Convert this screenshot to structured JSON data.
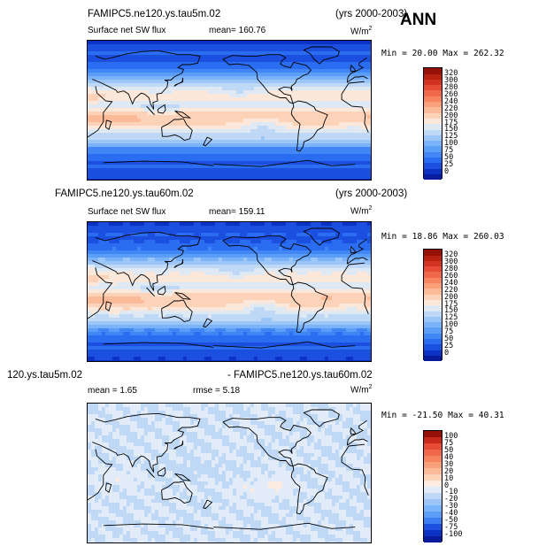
{
  "season": "ANN",
  "units": "W/m",
  "units_superscript": "2",
  "colors": {
    "abs_scale": [
      "#081b9c",
      "#0c32c4",
      "#1a4fe0",
      "#2a6df0",
      "#4286f5",
      "#5b9ef7",
      "#7ab3f9",
      "#9dc6f8",
      "#bfd8f5",
      "#dfe9f4",
      "#fbe8da",
      "#fcd3b9",
      "#fbbb98",
      "#f9a07a",
      "#f6845f",
      "#f0674a",
      "#e54b35",
      "#d23221",
      "#b8200f",
      "#951006"
    ],
    "diff_scale": [
      "#081b9c",
      "#0c32c4",
      "#1a4fe0",
      "#3d7ef2",
      "#5b9ef7",
      "#7ab3f9",
      "#9dc6f8",
      "#bfd8f5",
      "#e2ecf8",
      "#fcebe0",
      "#fcd3b9",
      "#fbbb98",
      "#f9a07a",
      "#f6845f",
      "#f0674a",
      "#e54b35",
      "#c8281a",
      "#951006"
    ]
  },
  "panels": [
    {
      "case": "FAMIPC5.ne120.ys.tau5m.02",
      "years": "(yrs 2000-2003)",
      "field": "Surface net SW flux",
      "stat_text": "mean=  160.76",
      "minmax": "Min =  20.00 Max = 262.32"
    },
    {
      "case": "FAMIPC5.ne120.ys.tau60m.02",
      "years": "(yrs 2000-2003)",
      "field": "Surface net SW flux",
      "stat_text": "mean=  159.11",
      "minmax": "Min =  18.86 Max = 260.03"
    },
    {
      "case_left": "120.ys.tau5m.02",
      "case_right": "- FAMIPC5.ne120.ys.tau60m.02",
      "stat_mean": "mean =   1.65",
      "stat_rmse": "rmse =   5.18",
      "minmax": "Min = -21.50 Max =  40.31"
    }
  ],
  "chart_data": [
    {
      "type": "heatmap",
      "title": "Surface net SW flux",
      "case": "FAMIPC5.ne120.ys.tau5m.02",
      "years": "(yrs 2000-2003)",
      "units": "W/m2",
      "mean": 160.76,
      "min": 20.0,
      "max": 262.32,
      "colorbar_levels": [
        0,
        25,
        50,
        75,
        100,
        125,
        150,
        175,
        200,
        220,
        240,
        260,
        280,
        300,
        320
      ]
    },
    {
      "type": "heatmap",
      "title": "Surface net SW flux",
      "case": "FAMIPC5.ne120.ys.tau60m.02",
      "years": "(yrs 2000-2003)",
      "units": "W/m2",
      "mean": 159.11,
      "min": 18.86,
      "max": 260.03,
      "colorbar_levels": [
        0,
        25,
        50,
        75,
        100,
        125,
        150,
        175,
        200,
        220,
        240,
        260,
        280,
        300,
        320
      ]
    },
    {
      "type": "heatmap",
      "title": "120.ys.tau5m.02 - FAMIPC5.ne120.ys.tau60m.02",
      "units": "W/m2",
      "mean": 1.65,
      "rmse": 5.18,
      "min": -21.5,
      "max": 40.31,
      "colorbar_levels": [
        -100,
        -75,
        -50,
        -40,
        -30,
        -20,
        -10,
        0,
        10,
        20,
        30,
        40,
        50,
        75,
        100
      ]
    }
  ]
}
